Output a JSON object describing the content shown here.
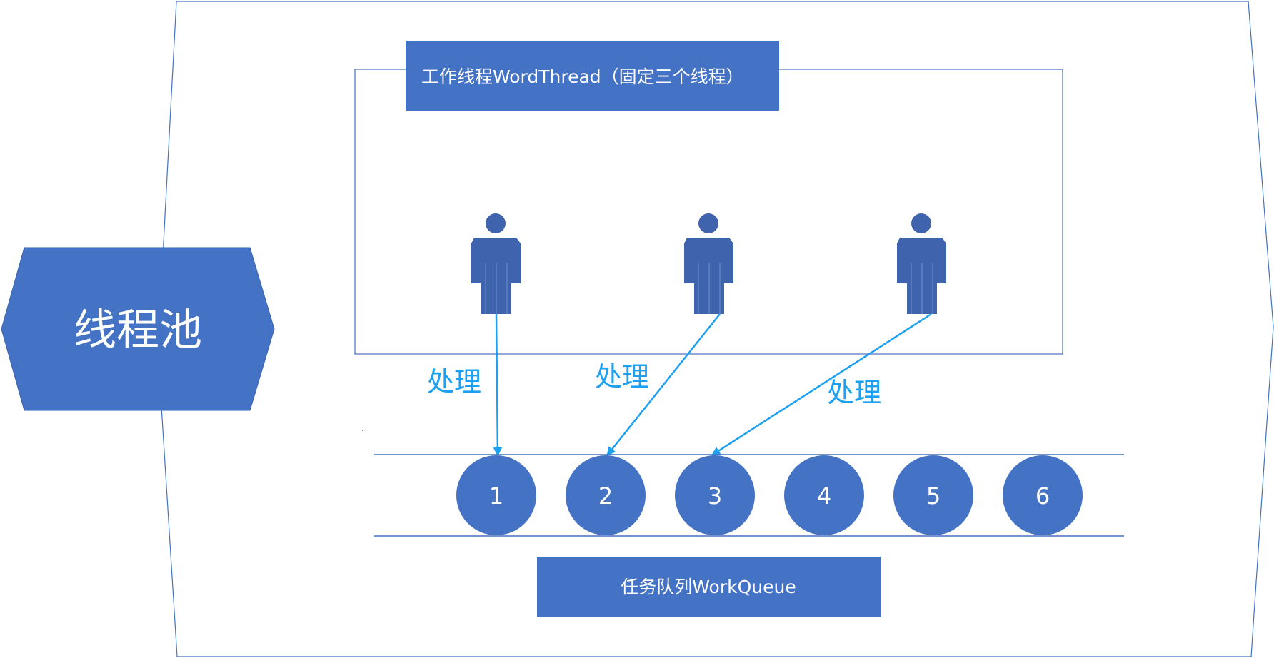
{
  "pool": {
    "label": "线程池"
  },
  "workers": {
    "title": "工作线程WordThread（固定三个线程）",
    "count": 3,
    "process_label": "处理"
  },
  "queue": {
    "title": "任务队列WorkQueue",
    "tasks": [
      "1",
      "2",
      "3",
      "4",
      "5",
      "6"
    ]
  },
  "colors": {
    "shape_fill": "#4472c4",
    "person_fill": "#3f63ad",
    "outline": "#4472c4",
    "arrow": "#1ca0f2",
    "label_text": "#1ca0f2"
  }
}
